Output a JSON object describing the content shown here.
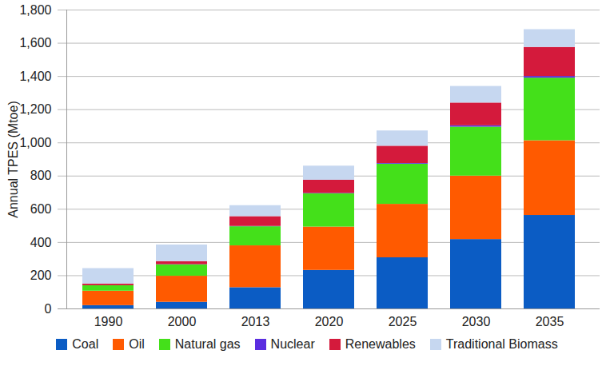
{
  "chart_data": {
    "type": "bar",
    "stacked": true,
    "grid": true,
    "y_label": "Annual TPES (Mtoe)",
    "categories": [
      "1990",
      "2000",
      "2013",
      "2020",
      "2025",
      "2030",
      "2035"
    ],
    "ylim": [
      0,
      1800
    ],
    "yticks": [
      0,
      200,
      400,
      600,
      800,
      1000,
      1200,
      1400,
      1600,
      1800
    ],
    "legend": "bottom",
    "series": [
      {
        "name": "Coal",
        "color": "#0b5cc4",
        "values": [
          20,
          40,
          128,
          232,
          308,
          418,
          563
        ]
      },
      {
        "name": "Oil",
        "color": "#ff5a00",
        "values": [
          87,
          157,
          252,
          261,
          322,
          382,
          450
        ]
      },
      {
        "name": "Natural gas",
        "color": "#44e01a",
        "values": [
          33,
          68,
          115,
          200,
          242,
          295,
          377
        ]
      },
      {
        "name": "Nuclear",
        "color": "#5a2de0",
        "values": [
          0,
          2,
          2,
          3,
          4,
          8,
          10
        ]
      },
      {
        "name": "Renewables",
        "color": "#d41a3c",
        "values": [
          10,
          18,
          59,
          79,
          104,
          137,
          175
        ]
      },
      {
        "name": "Traditional Biomass",
        "color": "#c6d7f0",
        "values": [
          93,
          100,
          66,
          85,
          92,
          100,
          107
        ]
      }
    ]
  }
}
